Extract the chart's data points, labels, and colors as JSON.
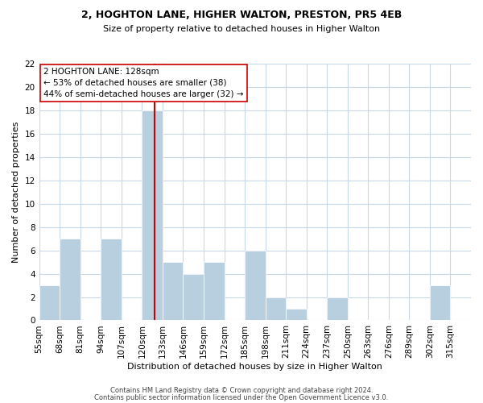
{
  "title": "2, HOGHTON LANE, HIGHER WALTON, PRESTON, PR5 4EB",
  "subtitle": "Size of property relative to detached houses in Higher Walton",
  "xlabel": "Distribution of detached houses by size in Higher Walton",
  "ylabel": "Number of detached properties",
  "footer_lines": [
    "Contains HM Land Registry data © Crown copyright and database right 2024.",
    "Contains public sector information licensed under the Open Government Licence v3.0."
  ],
  "bin_labels": [
    "55sqm",
    "68sqm",
    "81sqm",
    "94sqm",
    "107sqm",
    "120sqm",
    "133sqm",
    "146sqm",
    "159sqm",
    "172sqm",
    "185sqm",
    "198sqm",
    "211sqm",
    "224sqm",
    "237sqm",
    "250sqm",
    "263sqm",
    "276sqm",
    "289sqm",
    "302sqm",
    "315sqm"
  ],
  "bin_edges": [
    55,
    68,
    81,
    94,
    107,
    120,
    133,
    146,
    159,
    172,
    185,
    198,
    211,
    224,
    237,
    250,
    263,
    276,
    289,
    302,
    315
  ],
  "counts": [
    3,
    7,
    0,
    7,
    0,
    18,
    5,
    4,
    5,
    0,
    6,
    2,
    1,
    0,
    2,
    0,
    0,
    0,
    0,
    3
  ],
  "bar_color": "#b8cfe0",
  "bar_edge_color": "#ffffff",
  "property_line_x": 128,
  "property_line_color": "#cc0000",
  "annotation_line1": "2 HOGHTON LANE: 128sqm",
  "annotation_line2": "← 53% of detached houses are smaller (38)",
  "annotation_line3": "44% of semi-detached houses are larger (32) →",
  "annotation_box_color": "#ffffff",
  "annotation_box_edge_color": "#cc0000",
  "ylim": [
    0,
    22
  ],
  "yticks": [
    0,
    2,
    4,
    6,
    8,
    10,
    12,
    14,
    16,
    18,
    20,
    22
  ],
  "grid_color": "#c8d8e8",
  "background_color": "#ffffff",
  "title_fontsize": 9,
  "subtitle_fontsize": 8,
  "axis_label_fontsize": 8,
  "tick_fontsize": 7.5,
  "footer_fontsize": 6
}
